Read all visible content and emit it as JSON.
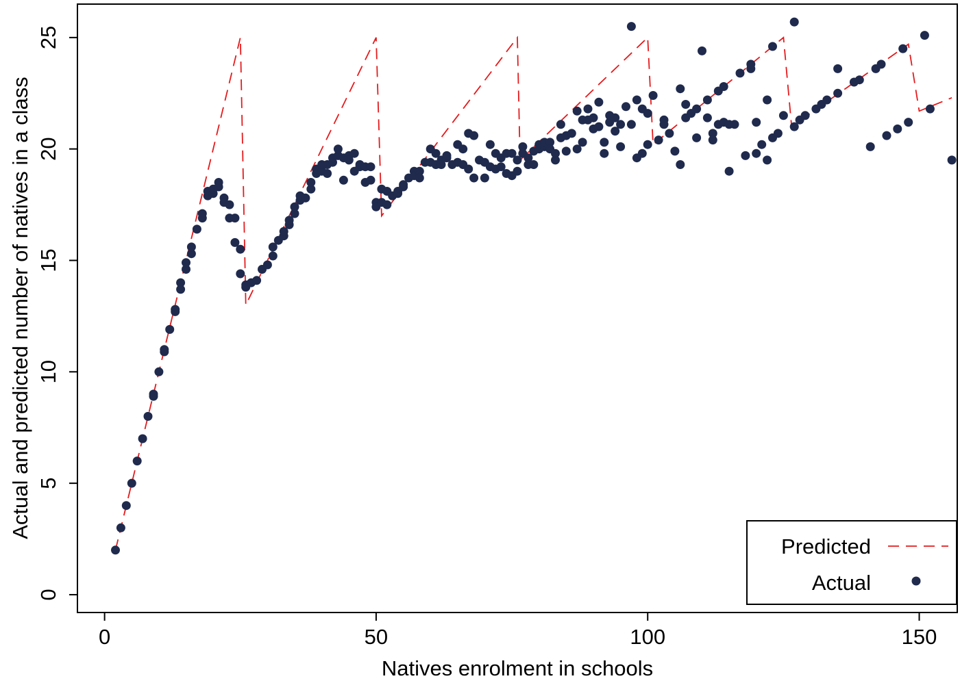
{
  "chart_data": {
    "type": "scatter",
    "xlabel": "Natives enrolment in schools",
    "ylabel": "Actual and predicted number of natives in a class",
    "xlim": [
      -5,
      157
    ],
    "ylim": [
      -0.8,
      26.5
    ],
    "x_ticks": [
      0,
      50,
      100,
      150
    ],
    "x_tick_labels": [
      "0",
      "50",
      "100",
      "150"
    ],
    "y_ticks": [
      0,
      5,
      10,
      15,
      20,
      25
    ],
    "y_tick_labels": [
      "0",
      "5",
      "10",
      "15",
      "20",
      "25"
    ],
    "grid": false,
    "legend": {
      "position": "bottom-right",
      "entries": [
        "Predicted",
        "Actual"
      ]
    },
    "colors": {
      "predicted": "#e41a1c",
      "actual": "#1f2a4d"
    },
    "series": [
      {
        "name": "Predicted",
        "style": "dashed-line",
        "points": [
          [
            2,
            2
          ],
          [
            25,
            25
          ],
          [
            26,
            13
          ],
          [
            50,
            25
          ],
          [
            51,
            17
          ],
          [
            76,
            25
          ],
          [
            76.5,
            19.5
          ],
          [
            100,
            25
          ],
          [
            101,
            20.2
          ],
          [
            125,
            25
          ],
          [
            126.5,
            21
          ],
          [
            148,
            24.7
          ],
          [
            150,
            21.7
          ],
          [
            156,
            22.3
          ]
        ]
      },
      {
        "name": "Actual",
        "style": "marker",
        "points": [
          [
            2,
            2
          ],
          [
            3,
            3
          ],
          [
            4,
            4
          ],
          [
            5,
            5
          ],
          [
            6,
            6
          ],
          [
            7,
            7
          ],
          [
            8,
            8
          ],
          [
            9,
            8.9
          ],
          [
            9,
            9
          ],
          [
            10,
            10
          ],
          [
            11,
            10.9
          ],
          [
            11,
            11
          ],
          [
            12,
            11.9
          ],
          [
            13,
            12.7
          ],
          [
            13,
            12.8
          ],
          [
            14,
            13.7
          ],
          [
            14,
            14
          ],
          [
            15,
            14.6
          ],
          [
            15,
            14.9
          ],
          [
            16,
            15.3
          ],
          [
            16,
            15.6
          ],
          [
            17,
            16.4
          ],
          [
            18,
            16.9
          ],
          [
            18,
            17.1
          ],
          [
            19,
            17.9
          ],
          [
            19,
            18.1
          ],
          [
            20,
            18
          ],
          [
            20,
            18.2
          ],
          [
            21,
            18.3
          ],
          [
            21,
            18.5
          ],
          [
            22,
            17.8
          ],
          [
            22,
            17.6
          ],
          [
            23,
            17.5
          ],
          [
            23,
            16.9
          ],
          [
            24,
            16.9
          ],
          [
            24,
            15.8
          ],
          [
            25,
            15.5
          ],
          [
            25,
            14.4
          ],
          [
            26,
            13.8
          ],
          [
            26,
            13.9
          ],
          [
            27,
            14
          ],
          [
            28,
            14.1
          ],
          [
            29,
            14.6
          ],
          [
            30,
            14.8
          ],
          [
            31,
            15.2
          ],
          [
            31,
            15.6
          ],
          [
            32,
            15.9
          ],
          [
            33,
            16.1
          ],
          [
            33,
            16.3
          ],
          [
            34,
            16.6
          ],
          [
            34,
            16.8
          ],
          [
            35,
            17.1
          ],
          [
            35,
            17.4
          ],
          [
            36,
            17.7
          ],
          [
            36,
            17.9
          ],
          [
            37,
            17.8
          ],
          [
            38,
            18.2
          ],
          [
            38,
            18.5
          ],
          [
            39,
            18.9
          ],
          [
            39,
            19.1
          ],
          [
            40,
            19
          ],
          [
            40,
            19.3
          ],
          [
            41,
            18.9
          ],
          [
            41,
            19.3
          ],
          [
            42,
            19.4
          ],
          [
            42,
            19.6
          ],
          [
            43,
            19.7
          ],
          [
            43,
            20
          ],
          [
            44,
            19.6
          ],
          [
            44,
            18.6
          ],
          [
            45,
            19.7
          ],
          [
            45,
            19.5
          ],
          [
            46,
            19.8
          ],
          [
            46,
            19
          ],
          [
            47,
            19.2
          ],
          [
            47,
            19.3
          ],
          [
            48,
            19.2
          ],
          [
            48,
            18.5
          ],
          [
            49,
            18.6
          ],
          [
            49,
            19.2
          ],
          [
            50,
            17.6
          ],
          [
            50,
            17.4
          ],
          [
            51,
            17.6
          ],
          [
            51,
            18.2
          ],
          [
            52,
            17.5
          ],
          [
            52,
            18.1
          ],
          [
            53,
            17.9
          ],
          [
            54,
            18.1
          ],
          [
            54,
            18
          ],
          [
            55,
            18.3
          ],
          [
            55,
            18.4
          ],
          [
            56,
            18.7
          ],
          [
            57,
            19
          ],
          [
            57,
            18.8
          ],
          [
            58,
            19
          ],
          [
            58,
            18.7
          ],
          [
            59,
            19.4
          ],
          [
            60,
            19.4
          ],
          [
            60,
            20
          ],
          [
            61,
            19.8
          ],
          [
            61,
            19.3
          ],
          [
            62,
            19.5
          ],
          [
            62,
            19.3
          ],
          [
            63,
            19.6
          ],
          [
            63,
            19.7
          ],
          [
            64,
            19.3
          ],
          [
            65,
            19.4
          ],
          [
            65,
            20.2
          ],
          [
            66,
            20
          ],
          [
            66,
            19.3
          ],
          [
            67,
            19.1
          ],
          [
            67,
            20.7
          ],
          [
            68,
            18.7
          ],
          [
            68,
            20.6
          ],
          [
            69,
            19.5
          ],
          [
            70,
            19.4
          ],
          [
            70,
            18.7
          ],
          [
            71,
            19.2
          ],
          [
            71,
            20.2
          ],
          [
            72,
            19.8
          ],
          [
            72,
            19.1
          ],
          [
            73,
            19.6
          ],
          [
            73,
            19.2
          ],
          [
            74,
            18.9
          ],
          [
            74,
            19.8
          ],
          [
            75,
            18.8
          ],
          [
            75,
            19.8
          ],
          [
            76,
            19
          ],
          [
            76,
            19.5
          ],
          [
            77,
            20.1
          ],
          [
            77,
            19.8
          ],
          [
            78,
            19.3
          ],
          [
            78,
            19.6
          ],
          [
            79,
            19.9
          ],
          [
            79,
            19.3
          ],
          [
            80,
            20.2
          ],
          [
            80,
            20
          ],
          [
            81,
            20.1
          ],
          [
            81,
            20.3
          ],
          [
            82,
            20.3
          ],
          [
            82,
            20
          ],
          [
            83,
            19.5
          ],
          [
            83,
            19.8
          ],
          [
            84,
            20.5
          ],
          [
            84,
            21.1
          ],
          [
            85,
            20.6
          ],
          [
            85,
            19.9
          ],
          [
            86,
            20.7
          ],
          [
            87,
            20
          ],
          [
            87,
            21.7
          ],
          [
            88,
            21.3
          ],
          [
            88,
            20.3
          ],
          [
            89,
            21.3
          ],
          [
            89,
            21.8
          ],
          [
            90,
            21.4
          ],
          [
            90,
            20.9
          ],
          [
            91,
            21
          ],
          [
            91,
            22.1
          ],
          [
            92,
            19.8
          ],
          [
            92,
            20.3
          ],
          [
            93,
            21.2
          ],
          [
            93,
            21.5
          ],
          [
            94,
            21.4
          ],
          [
            94,
            20.8
          ],
          [
            95,
            21.1
          ],
          [
            95,
            20.1
          ],
          [
            96,
            21.9
          ],
          [
            97,
            21.1
          ],
          [
            97,
            25.5
          ],
          [
            98,
            19.6
          ],
          [
            98,
            22.2
          ],
          [
            99,
            21.8
          ],
          [
            99,
            19.8
          ],
          [
            100,
            21.6
          ],
          [
            100,
            20.2
          ],
          [
            101,
            22.4
          ],
          [
            102,
            20.4
          ],
          [
            103,
            21.3
          ],
          [
            103,
            21.1
          ],
          [
            104,
            20.7
          ],
          [
            105,
            19.9
          ],
          [
            106,
            22.7
          ],
          [
            106,
            19.3
          ],
          [
            107,
            22
          ],
          [
            107,
            21.4
          ],
          [
            108,
            21.6
          ],
          [
            109,
            21.8
          ],
          [
            109,
            20.5
          ],
          [
            110,
            24.4
          ],
          [
            111,
            21.4
          ],
          [
            111,
            22.2
          ],
          [
            112,
            20.7
          ],
          [
            112,
            20.4
          ],
          [
            113,
            21.1
          ],
          [
            113,
            22.6
          ],
          [
            114,
            21.2
          ],
          [
            114,
            22.8
          ],
          [
            115,
            21.1
          ],
          [
            116,
            21.1
          ],
          [
            115,
            19
          ],
          [
            117,
            23.4
          ],
          [
            118,
            19.7
          ],
          [
            119,
            23.6
          ],
          [
            119,
            23.8
          ],
          [
            120,
            21.2
          ],
          [
            120,
            19.8
          ],
          [
            121,
            20.2
          ],
          [
            122,
            19.5
          ],
          [
            122,
            22.2
          ],
          [
            123,
            20.5
          ],
          [
            123,
            24.6
          ],
          [
            124,
            20.7
          ],
          [
            125,
            21.5
          ],
          [
            127,
            25.7
          ],
          [
            127,
            21
          ],
          [
            128,
            21.3
          ],
          [
            129,
            21.5
          ],
          [
            131,
            21.8
          ],
          [
            132,
            22
          ],
          [
            133,
            22.2
          ],
          [
            135,
            22.5
          ],
          [
            135,
            23.6
          ],
          [
            138,
            23
          ],
          [
            139,
            23.1
          ],
          [
            141,
            20.1
          ],
          [
            142,
            23.6
          ],
          [
            143,
            23.8
          ],
          [
            144,
            20.6
          ],
          [
            146,
            20.9
          ],
          [
            147,
            24.5
          ],
          [
            148,
            21.2
          ],
          [
            151,
            25.1
          ],
          [
            152,
            21.8
          ],
          [
            156,
            19.5
          ]
        ]
      }
    ]
  }
}
